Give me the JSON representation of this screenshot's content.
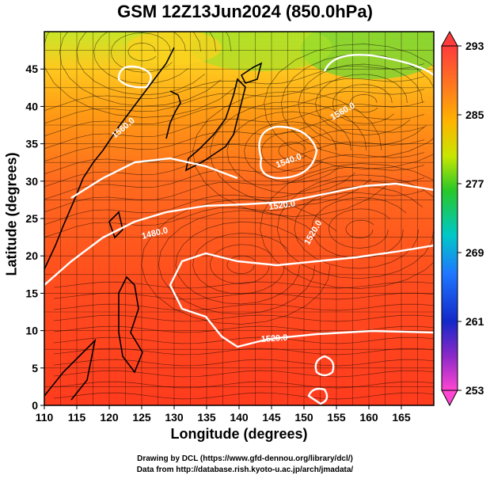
{
  "title": "GSM 12Z13Jun2024 (850.0hPa)",
  "axes": {
    "xlabel": "Longitude (degrees)",
    "ylabel": "Latitude  (degrees)",
    "x_ticks": [
      "110",
      "115",
      "120",
      "125",
      "130",
      "135",
      "140",
      "145",
      "150",
      "155",
      "160",
      "165"
    ],
    "y_ticks": [
      "0",
      "5",
      "10",
      "15",
      "20",
      "25",
      "30",
      "35",
      "40",
      "45"
    ]
  },
  "colorbar": {
    "ticks": [
      "293",
      "285",
      "277",
      "269",
      "261",
      "253"
    ],
    "colors": [
      "#ff5a3c",
      "#ff9a10",
      "#4fd12a",
      "#1ea0ff",
      "#1830d0",
      "#e03ad8"
    ]
  },
  "contours": {
    "labels": [
      "1480.0",
      "1520.0",
      "1520.0",
      "1520.0",
      "1540.0",
      "1560.0",
      "1560.0"
    ],
    "color": "#ffffff"
  },
  "map_colors": {
    "warm": "#ff3c1e",
    "orange": "#ff8c14",
    "yellow": "#ffd21e",
    "green": "#9be132",
    "land": "#000000"
  },
  "credits": {
    "line1": "Drawing by DCL (https://www.gfd-dennou.org/library/dcl/)",
    "line2": "Data from http://database.rish.kyoto-u.ac.jp/arch/jmadata/"
  }
}
